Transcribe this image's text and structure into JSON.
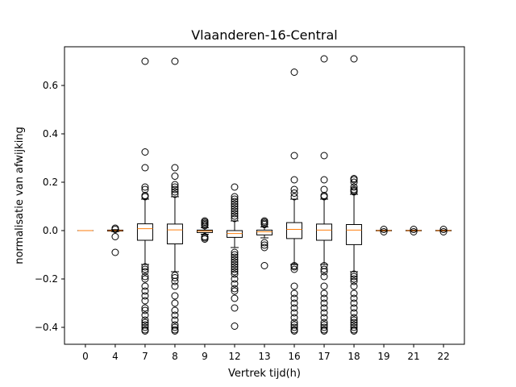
{
  "chart_data": {
    "type": "box",
    "title": "Vlaanderen-16-Central",
    "xlabel": "Vertrek tijd(h)",
    "ylabel": "normalisatie van afwijking",
    "ylim": [
      -0.47,
      0.76
    ],
    "yticks": [
      -0.4,
      -0.2,
      0.0,
      0.2,
      0.4,
      0.6
    ],
    "ytick_labels": [
      "−0.4",
      "−0.2",
      "0.0",
      "0.2",
      "0.4",
      "0.6"
    ],
    "categories": [
      "0",
      "4",
      "7",
      "8",
      "9",
      "12",
      "13",
      "16",
      "17",
      "18",
      "19",
      "21",
      "22"
    ],
    "colors": {
      "box": "#000000",
      "median": "#ff7f0e",
      "outlier": "#000000"
    },
    "boxes": [
      {
        "category": "0",
        "q1": 0.0,
        "median": 0.0,
        "q3": 0.0,
        "whisker_low": 0.0,
        "whisker_high": 0.0,
        "outliers": []
      },
      {
        "category": "4",
        "q1": -0.002,
        "median": 0.0,
        "q3": 0.002,
        "whisker_low": -0.004,
        "whisker_high": 0.004,
        "outliers": [
          -0.09,
          -0.025,
          0.005,
          0.01
        ]
      },
      {
        "category": "7",
        "q1": -0.04,
        "median": 0.008,
        "q3": 0.028,
        "whisker_low": -0.14,
        "whisker_high": 0.13,
        "outliers": [
          0.7,
          0.325,
          0.26,
          0.18,
          0.17,
          0.145,
          0.14,
          -0.15,
          -0.16,
          -0.17,
          -0.19,
          -0.2,
          -0.23,
          -0.25,
          -0.27,
          -0.29,
          -0.32,
          -0.33,
          -0.35,
          -0.37,
          -0.38,
          -0.39,
          -0.4,
          -0.41,
          -0.415
        ]
      },
      {
        "category": "8",
        "q1": -0.055,
        "median": 0.003,
        "q3": 0.027,
        "whisker_low": -0.17,
        "whisker_high": 0.14,
        "outliers": [
          0.7,
          0.26,
          0.225,
          0.19,
          0.18,
          0.17,
          0.16,
          0.15,
          -0.185,
          -0.195,
          -0.21,
          -0.23,
          -0.27,
          -0.3,
          -0.33,
          -0.35,
          -0.37,
          -0.39,
          -0.4,
          -0.41,
          -0.415
        ]
      },
      {
        "category": "9",
        "q1": -0.008,
        "median": -0.002,
        "q3": 0.002,
        "whisker_low": -0.015,
        "whisker_high": 0.012,
        "outliers": [
          0.04,
          0.035,
          0.03,
          0.025,
          0.02,
          -0.025,
          -0.03,
          -0.035
        ]
      },
      {
        "category": "12",
        "q1": -0.028,
        "median": -0.012,
        "q3": 0.0,
        "whisker_low": -0.07,
        "whisker_high": 0.04,
        "outliers": [
          0.18,
          0.14,
          0.13,
          0.12,
          0.11,
          0.1,
          0.09,
          0.08,
          0.07,
          0.06,
          0.05,
          -0.09,
          -0.1,
          -0.11,
          -0.12,
          -0.13,
          -0.14,
          -0.15,
          -0.16,
          -0.17,
          -0.18,
          -0.2,
          -0.22,
          -0.24,
          -0.25,
          -0.28,
          -0.32,
          -0.395
        ]
      },
      {
        "category": "13",
        "q1": -0.018,
        "median": -0.005,
        "q3": 0.002,
        "whisker_low": -0.03,
        "whisker_high": 0.015,
        "outliers": [
          0.04,
          0.035,
          0.03,
          0.025,
          -0.05,
          -0.06,
          -0.07,
          -0.145
        ]
      },
      {
        "category": "16",
        "q1": -0.033,
        "median": 0.005,
        "q3": 0.033,
        "whisker_low": -0.14,
        "whisker_high": 0.13,
        "outliers": [
          0.655,
          0.31,
          0.21,
          0.17,
          0.155,
          0.14,
          -0.145,
          -0.15,
          -0.16,
          -0.23,
          -0.26,
          -0.28,
          -0.3,
          -0.32,
          -0.34,
          -0.36,
          -0.38,
          -0.39,
          -0.4,
          -0.41,
          -0.415
        ]
      },
      {
        "category": "17",
        "q1": -0.04,
        "median": 0.002,
        "q3": 0.027,
        "whisker_low": -0.14,
        "whisker_high": 0.13,
        "outliers": [
          0.71,
          0.31,
          0.21,
          0.17,
          0.145,
          0.14,
          -0.145,
          -0.16,
          -0.17,
          -0.19,
          -0.23,
          -0.26,
          -0.28,
          -0.3,
          -0.32,
          -0.34,
          -0.36,
          -0.38,
          -0.39,
          -0.4,
          -0.41,
          -0.415
        ]
      },
      {
        "category": "18",
        "q1": -0.058,
        "median": 0.002,
        "q3": 0.025,
        "whisker_low": -0.17,
        "whisker_high": 0.15,
        "outliers": [
          0.71,
          0.215,
          0.21,
          0.2,
          0.18,
          0.17,
          0.165,
          0.16,
          -0.18,
          -0.19,
          -0.2,
          -0.21,
          -0.23,
          -0.26,
          -0.28,
          -0.3,
          -0.32,
          -0.34,
          -0.36,
          -0.37,
          -0.38,
          -0.39,
          -0.4,
          -0.41,
          -0.415
        ]
      },
      {
        "category": "19",
        "q1": -0.001,
        "median": 0.0,
        "q3": 0.001,
        "whisker_low": -0.002,
        "whisker_high": 0.002,
        "outliers": [
          0.005,
          -0.005
        ]
      },
      {
        "category": "21",
        "q1": -0.001,
        "median": 0.0,
        "q3": 0.001,
        "whisker_low": -0.002,
        "whisker_high": 0.002,
        "outliers": [
          0.005,
          -0.005
        ]
      },
      {
        "category": "22",
        "q1": -0.001,
        "median": 0.0,
        "q3": 0.001,
        "whisker_low": -0.002,
        "whisker_high": 0.002,
        "outliers": [
          0.005,
          -0.005
        ]
      }
    ]
  }
}
